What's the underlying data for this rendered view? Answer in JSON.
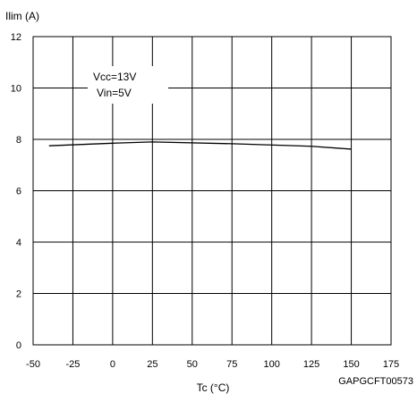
{
  "chart_data": {
    "type": "line",
    "title": "",
    "ylabel": "Ilim (A)",
    "xlabel": "Tc (°C)",
    "xlim": [
      -50,
      175
    ],
    "ylim": [
      0,
      12
    ],
    "x_ticks": [
      -50,
      -25,
      0,
      25,
      50,
      75,
      100,
      125,
      150,
      175
    ],
    "y_ticks": [
      0,
      2,
      4,
      6,
      8,
      10,
      12
    ],
    "x_tick_labels": [
      "-50",
      "-25",
      "0",
      "25",
      "50",
      "75",
      "100",
      "125",
      "150",
      "175"
    ],
    "y_tick_labels": [
      "0",
      "2",
      "4",
      "6",
      "8",
      "10",
      "12"
    ],
    "grid": true,
    "annotations": {
      "condition_1": "Vcc=13V",
      "condition_2": "Vin=5V"
    },
    "series": [
      {
        "x": [
          -40,
          0,
          25,
          75,
          125,
          150
        ],
        "y": [
          7.75,
          7.85,
          7.9,
          7.83,
          7.73,
          7.62
        ]
      }
    ],
    "figure_id": "GAPGCFT00573",
    "colors": {
      "line": "#000000",
      "grid": "#000000",
      "background": "#ffffff"
    }
  }
}
